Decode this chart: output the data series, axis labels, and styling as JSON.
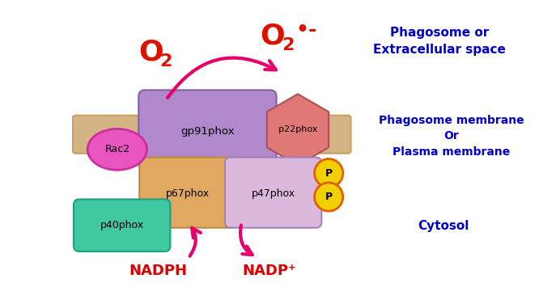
{
  "bg_color": "#ffffff",
  "membrane_color": "#d4b483",
  "membrane_edge": "#c8a060",
  "gp91phox_color": "#b088cc",
  "gp91phox_edge": "#8060aa",
  "gp91phox_label": "gp91phox",
  "p22phox_color": "#e07878",
  "p22phox_edge": "#b05050",
  "p22phox_label": "p22phox",
  "p67phox_color": "#e0a860",
  "p67phox_edge": "#c08840",
  "p67phox_label": "p67phox",
  "p47phox_color": "#ddb8dd",
  "p47phox_edge": "#a080c0",
  "p47phox_label": "p47phox",
  "p40phox_color": "#40c8a0",
  "p40phox_edge": "#20a080",
  "p40phox_label": "p40phox",
  "rac2_color": "#e855c0",
  "rac2_edge": "#cc30a0",
  "rac2_label": "Rac2",
  "phospho_color": "#f0d000",
  "phospho_edge": "#e06000",
  "phospho_label": "P",
  "o2_label": "O",
  "o2_sub": "2",
  "o2rad_label": "O",
  "o2rad_sub": "2",
  "o2rad_suffix": "•-",
  "nadph_label": "NADPH",
  "nadp_label": "NADP⁺",
  "arrow_color": "#e8006a",
  "o2_color": "#dd1100",
  "label_blue": "#0000cc",
  "label_red": "#dd0000",
  "phagosome_label": "Phagosome or\nExtracellular space",
  "membrane_label": "Phagosome membrane\nOr\nPlasma membrane",
  "cytosol_label": "Cytosol"
}
